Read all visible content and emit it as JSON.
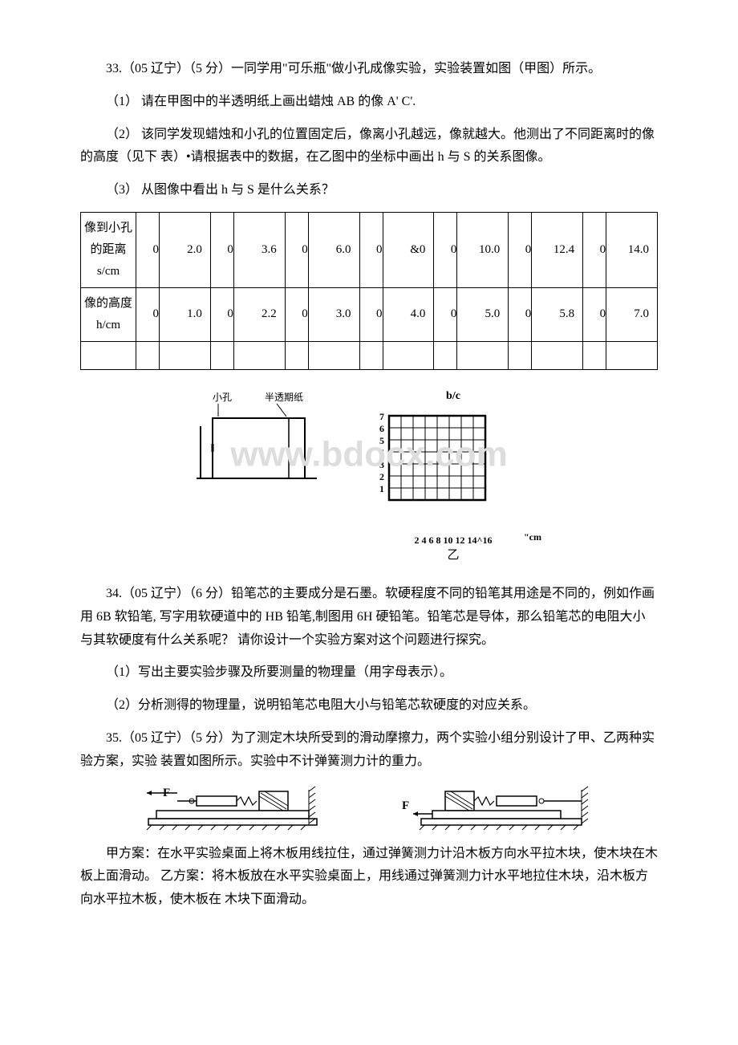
{
  "q33": {
    "intro": "33.（05 辽宁）（5 分）一同学用\"可乐瓶\"做小孔成像实验，实验装置如图（甲图）所示。",
    "p1": "（1） 请在甲图中的半透明纸上画出蜡烛 AB 的像 A' C'.",
    "p2": "（2） 该同学发现蜡烛和小孔的位置固定后，像离小孔越远，像就越大。他测出了不同距离时的像的高度（见下 表）•请根据表中的数据，在乙图中的坐标中画出 h 与 S 的关系图像。",
    "p3": "（3） 从图像中看出 h 与 S 是什么关系？",
    "table": {
      "row1_label": "像到小孔的距离s/cm",
      "row1": [
        "2.0",
        "3.6",
        "6.0",
        "&0",
        "10.0",
        "12.4",
        "14.0"
      ],
      "row2_label": "像的高度h/cm",
      "row2": [
        "1.0",
        "2.2",
        "3.0",
        "4.0",
        "5.0",
        "5.8",
        "7.0"
      ]
    },
    "fig_jia": {
      "label_hole": "小孔",
      "label_paper": "半透期纸"
    },
    "fig_yi": {
      "ylabel": "b/c",
      "xlabel_unit": "\"cm",
      "yticks": [
        "7",
        "6",
        "5",
        "4",
        "3",
        "2",
        "1"
      ],
      "xticks": "2 4 6 8 10 12 14^16",
      "caption": "乙",
      "grid_color": "#000000",
      "bg": "#ffffff",
      "cols": 8,
      "rows": 7
    }
  },
  "q34": {
    "intro": "34.（05 辽宁）（6 分）铅笔芯的主要成分是石墨。软硬程度不同的铅笔其用途是不同的，例如作画用 6B 软铅笔, 写字用软硬道中的 HB 铅笔,制图用 6H 硬铅笔。铅笔芯是导体，那么铅笔芯的电阻大小与其软硬度有什么关系呢？ 请你设计一个实验方案对这个问题进行探究。",
    "p1": "（1）写出主要实验步骤及所要测量的物理量（用字母表示）。",
    "p2": "（2）分析测得的物理量，说明铅笔芯电阻大小与铅笔芯软硬度的对应关系。"
  },
  "q35": {
    "intro": "35.（05 辽宁）（5 分）为了测定木块所受到的滑动摩擦力，两个实验小组分别设计了甲、乙两种实验方案，实验 装置如图所示。实验中不计弹簧测力计的重力。",
    "fig_label": "F",
    "plan_jia": "甲方案：在水平实验桌面上将木板用线拉住，通过弹簧测力计沿木板方向水平拉木块，使木块在木板上面滑动。 乙方案：将木板放在水平实验桌面上，用线通过弹簧测力计水平地拉住木块，沿木板方向水平拉木板，使木板在 木块下面滑动。"
  },
  "watermark": "www.bdocx.com"
}
